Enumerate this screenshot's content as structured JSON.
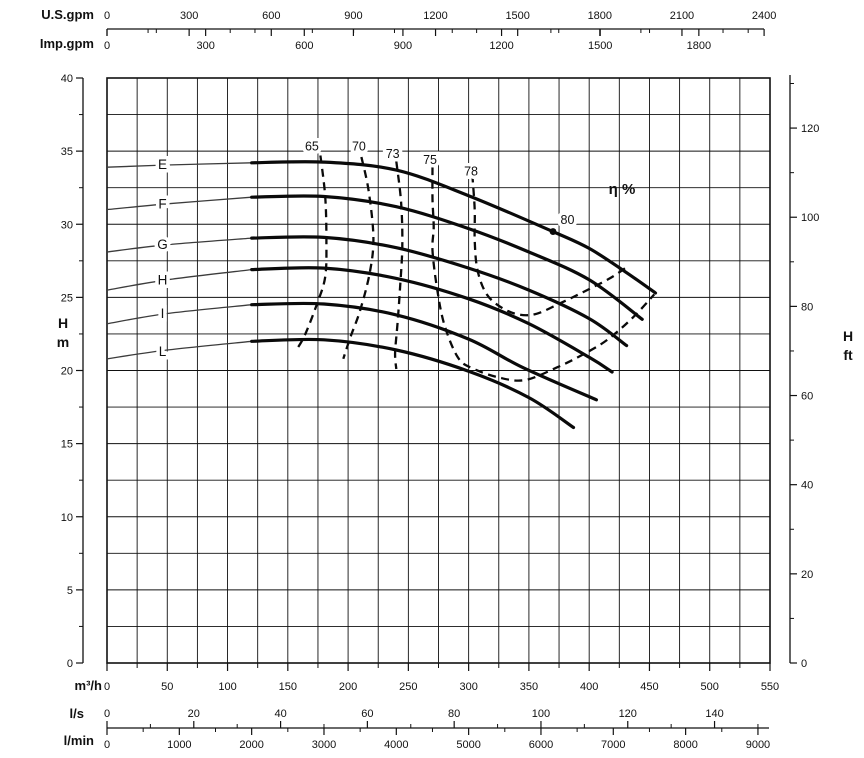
{
  "axis_labels": {
    "us_gpm": "U.S.gpm",
    "imp_gpm": "Imp.gpm",
    "m3h": "m³/h",
    "ls": "l/s",
    "lmin": "l/min",
    "h_m_line1": "H",
    "h_m_line2": "m",
    "h_ft_line1": "H",
    "h_ft_line2": "ft",
    "eta": "η %"
  },
  "chart_data": {
    "type": "line",
    "title": "Pump performance curves with efficiency contours",
    "x_range_m3h": [
      0,
      550
    ],
    "y_range_m": [
      0,
      40
    ],
    "grid": {
      "x_step_m3h": 25,
      "y_step_m": 2.5
    },
    "x_axes": {
      "us_gpm": {
        "unit": "U.S.gpm",
        "to_m3h": 0.227125,
        "major_ticks": [
          0,
          300,
          600,
          900,
          1200,
          1500,
          1800,
          2100,
          2400
        ],
        "minor_step": 150
      },
      "imp_gpm": {
        "unit": "Imp.gpm",
        "to_m3h": 0.272766,
        "major_ticks": [
          0,
          300,
          600,
          900,
          1200,
          1500,
          1800
        ],
        "minor_step": 150
      },
      "m3h": {
        "unit": "m³/h",
        "to_m3h": 1,
        "major_ticks": [
          0,
          50,
          100,
          150,
          200,
          250,
          300,
          350,
          400,
          450,
          500,
          550
        ],
        "minor_step": 25
      },
      "ls": {
        "unit": "l/s",
        "to_m3h": 3.6,
        "major_ticks": [
          0,
          20,
          40,
          60,
          80,
          100,
          120,
          140
        ],
        "minor_step": 10
      },
      "lmin": {
        "unit": "l/min",
        "to_m3h": 0.06,
        "major_ticks": [
          0,
          1000,
          2000,
          3000,
          4000,
          5000,
          6000,
          7000,
          8000,
          9000
        ],
        "minor_step": 500
      }
    },
    "y_axes": {
      "h_m": {
        "unit": "m",
        "to_m": 1,
        "major_ticks": [
          0,
          5,
          10,
          15,
          20,
          25,
          30,
          35,
          40
        ],
        "minor_step": 2.5
      },
      "h_ft": {
        "unit": "ft",
        "to_m": 0.3048,
        "major_ticks": [
          0,
          20,
          40,
          60,
          80,
          100,
          120
        ],
        "minor_step": 10
      }
    },
    "pump_curves": [
      {
        "name": "E",
        "label_q": 46,
        "label_h": 34.1,
        "thick_from_q": 120,
        "points": [
          [
            0,
            33.9
          ],
          [
            50,
            34.05
          ],
          [
            120,
            34.2
          ],
          [
            180,
            34.25
          ],
          [
            240,
            33.7
          ],
          [
            300,
            31.95
          ],
          [
            370,
            29.5
          ],
          [
            400,
            28.35
          ],
          [
            430,
            26.75
          ],
          [
            455,
            25.3
          ]
        ]
      },
      {
        "name": "F",
        "label_q": 46,
        "label_h": 31.4,
        "thick_from_q": 120,
        "points": [
          [
            0,
            31.0
          ],
          [
            50,
            31.4
          ],
          [
            120,
            31.85
          ],
          [
            180,
            31.9
          ],
          [
            240,
            31.2
          ],
          [
            300,
            29.7
          ],
          [
            350,
            28.1
          ],
          [
            400,
            26.2
          ],
          [
            444,
            23.5
          ]
        ]
      },
      {
        "name": "G",
        "label_q": 46,
        "label_h": 28.6,
        "thick_from_q": 120,
        "points": [
          [
            0,
            28.1
          ],
          [
            50,
            28.6
          ],
          [
            120,
            29.05
          ],
          [
            180,
            29.1
          ],
          [
            240,
            28.4
          ],
          [
            300,
            27.0
          ],
          [
            350,
            25.5
          ],
          [
            400,
            23.55
          ],
          [
            431,
            21.7
          ]
        ]
      },
      {
        "name": "H",
        "label_q": 46,
        "label_h": 26.2,
        "thick_from_q": 120,
        "points": [
          [
            0,
            25.5
          ],
          [
            50,
            26.2
          ],
          [
            120,
            26.9
          ],
          [
            180,
            27.0
          ],
          [
            240,
            26.3
          ],
          [
            300,
            24.9
          ],
          [
            350,
            23.2
          ],
          [
            400,
            20.9
          ],
          [
            419,
            19.9
          ]
        ]
      },
      {
        "name": "I",
        "label_q": 46,
        "label_h": 23.9,
        "thick_from_q": 120,
        "points": [
          [
            0,
            23.2
          ],
          [
            50,
            23.9
          ],
          [
            120,
            24.5
          ],
          [
            180,
            24.55
          ],
          [
            240,
            23.8
          ],
          [
            300,
            22.15
          ],
          [
            345,
            20.2
          ],
          [
            406,
            18.0
          ]
        ]
      },
      {
        "name": "L",
        "label_q": 46,
        "label_h": 21.3,
        "thick_from_q": 120,
        "points": [
          [
            0,
            20.8
          ],
          [
            50,
            21.4
          ],
          [
            120,
            22.0
          ],
          [
            180,
            22.1
          ],
          [
            240,
            21.4
          ],
          [
            300,
            19.95
          ],
          [
            350,
            18.15
          ],
          [
            387,
            16.1
          ]
        ]
      }
    ],
    "efficiency_contours": [
      {
        "value": "65",
        "label_pos": [
          170,
          35.3
        ],
        "points": [
          [
            177,
            34.7
          ],
          [
            181,
            31.9
          ],
          [
            182,
            28.9
          ],
          [
            181,
            26.4
          ],
          [
            174,
            24.5
          ],
          [
            164,
            22.4
          ],
          [
            157,
            21.4
          ]
        ]
      },
      {
        "value": "70",
        "label_pos": [
          209,
          35.3
        ],
        "points": [
          [
            211,
            34.6
          ],
          [
            217,
            32.3
          ],
          [
            221,
            29.1
          ],
          [
            218,
            26.7
          ],
          [
            210,
            24.1
          ],
          [
            202,
            22.3
          ],
          [
            196,
            20.8
          ]
        ]
      },
      {
        "value": "73",
        "label_pos": [
          237,
          34.8
        ],
        "points": [
          [
            240,
            34.3
          ],
          [
            244,
            31.5
          ],
          [
            245,
            28.5
          ],
          [
            243,
            25.5
          ],
          [
            241,
            23.2
          ],
          [
            239,
            21.2
          ],
          [
            240,
            20.1
          ]
        ]
      },
      {
        "value": "75",
        "label_pos": [
          268,
          34.4
        ],
        "points": [
          [
            270,
            33.9
          ],
          [
            270,
            31.7
          ],
          [
            271,
            29.8
          ],
          [
            270,
            28.2
          ],
          [
            274,
            25.5
          ],
          [
            280,
            23.1
          ],
          [
            291,
            20.9
          ],
          [
            303,
            20.15
          ],
          [
            326,
            19.5
          ],
          [
            347,
            19.35
          ],
          [
            373,
            20.2
          ],
          [
            395,
            21.1
          ],
          [
            415,
            22.1
          ],
          [
            436,
            23.6
          ],
          [
            454,
            25.2
          ]
        ]
      },
      {
        "value": "78",
        "label_pos": [
          302,
          33.6
        ],
        "points": [
          [
            303,
            33.4
          ],
          [
            305,
            31.0
          ],
          [
            305,
            28.9
          ],
          [
            307,
            27.0
          ],
          [
            313,
            25.5
          ],
          [
            322,
            24.6
          ],
          [
            338,
            23.9
          ],
          [
            355,
            23.85
          ],
          [
            376,
            24.6
          ],
          [
            396,
            25.4
          ],
          [
            417,
            26.3
          ],
          [
            430,
            27.0
          ]
        ]
      }
    ],
    "best_efficiency_point": {
      "value": "80",
      "point_q_h": [
        370,
        29.5
      ],
      "label_pos": [
        382,
        30.3
      ]
    }
  }
}
